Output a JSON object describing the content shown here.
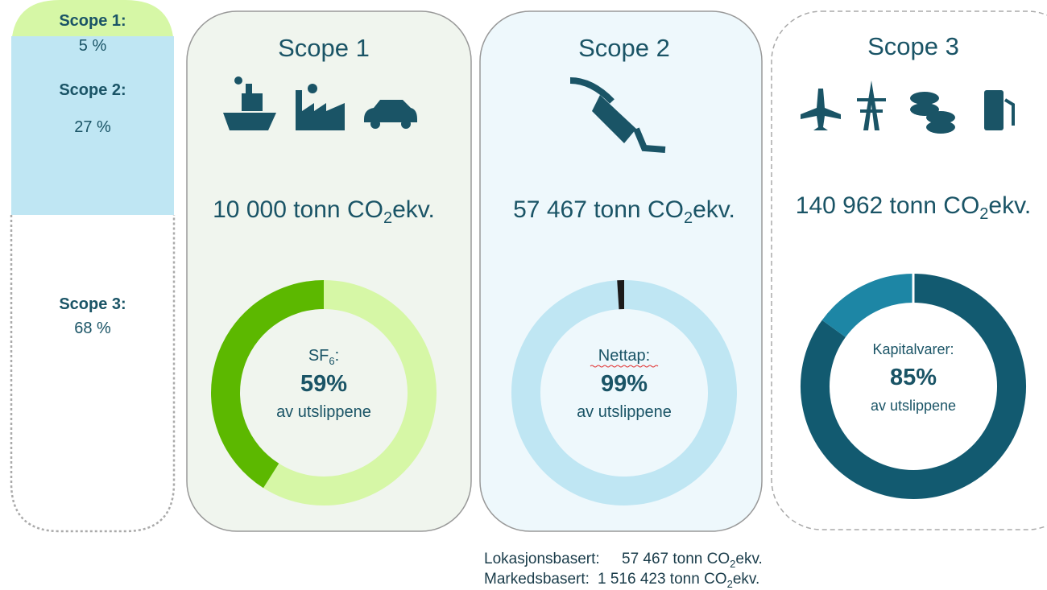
{
  "sidebar": [
    {
      "label": "Scope 1:",
      "value": "5 %"
    },
    {
      "label": "Scope 2:",
      "value": "27 %"
    },
    {
      "label": "Scope 3:",
      "value": "68 %"
    }
  ],
  "panels": [
    {
      "title": "Scope 1",
      "emissions": "10 000 tonn CO",
      "emissions_sub": "2",
      "emissions_unit": "ekv.",
      "donut": {
        "label": "SF",
        "label_sub": "6",
        "label_end": ":",
        "value": 59,
        "value_label": "59%",
        "caption": "av utslippene",
        "color": "#d6f7a6",
        "rest_color": "#5cb800"
      }
    },
    {
      "title": "Scope 2",
      "emissions": "57 467 tonn CO",
      "emissions_sub": "2",
      "emissions_unit": "ekv.",
      "donut": {
        "label": "Nettap:",
        "value": 99,
        "value_label": "99%",
        "caption": "av utslippene",
        "color": "#bfe6f3",
        "rest_color": "#1a1a1a"
      }
    },
    {
      "title": "Scope 3",
      "emissions": "140 962 tonn CO",
      "emissions_sub": "2",
      "emissions_unit": "ekv.",
      "donut": {
        "label": "Kapitalvarer:",
        "value": 85,
        "value_label": "85%",
        "caption": "av utslippene",
        "color": "#125a70",
        "rest_color": "#1d86a5"
      }
    }
  ],
  "footer": [
    {
      "label": "Lokasjonsbasert:",
      "text": "57 467 tonn CO",
      "sub": "2",
      "unit": "ekv."
    },
    {
      "label": "Markedsbasert:",
      "text": "1 516 423 tonn CO",
      "sub": "2",
      "unit": "ekv."
    }
  ]
}
